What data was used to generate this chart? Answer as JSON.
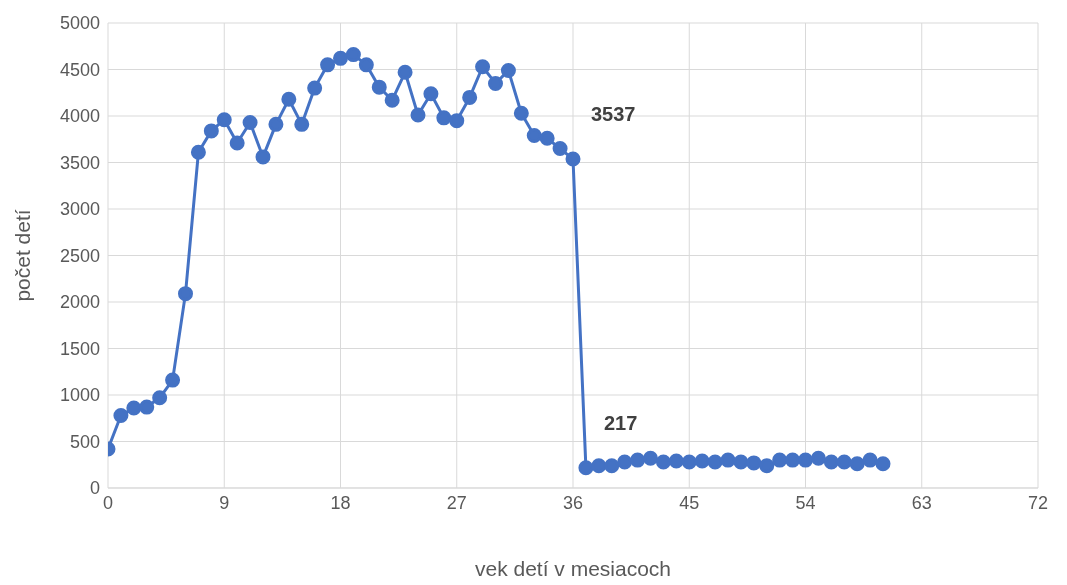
{
  "chart_data": {
    "type": "line",
    "xlabel": "vek detí v mesiacoch",
    "ylabel": "počet detí",
    "x": [
      0,
      1,
      2,
      3,
      4,
      5,
      6,
      7,
      8,
      9,
      10,
      11,
      12,
      13,
      14,
      15,
      16,
      17,
      18,
      19,
      20,
      21,
      22,
      23,
      24,
      25,
      26,
      27,
      28,
      29,
      30,
      31,
      32,
      33,
      34,
      35,
      36,
      37,
      38,
      39,
      40,
      41,
      42,
      43,
      44,
      45,
      46,
      47,
      48,
      49,
      50,
      51,
      52,
      53,
      54,
      55,
      56,
      57,
      58,
      59,
      60
    ],
    "series": [
      {
        "color": "#4472c4",
        "values": [
          420,
          780,
          860,
          870,
          970,
          1160,
          2090,
          3610,
          3840,
          3960,
          3710,
          3930,
          3560,
          3910,
          4180,
          3910,
          4300,
          4550,
          4620,
          4660,
          4550,
          4310,
          4170,
          4470,
          4010,
          4240,
          3980,
          3950,
          4200,
          4530,
          4350,
          4490,
          4030,
          3790,
          3760,
          3650,
          3537,
          217,
          240,
          240,
          280,
          300,
          320,
          280,
          290,
          280,
          290,
          280,
          300,
          280,
          270,
          240,
          300,
          300,
          300,
          320,
          280,
          280,
          260,
          300,
          260
        ],
        "value_labels": [
          null,
          null,
          null,
          null,
          null,
          null,
          null,
          null,
          null,
          null,
          null,
          null,
          null,
          null,
          null,
          null,
          null,
          null,
          null,
          null,
          null,
          null,
          null,
          null,
          null,
          null,
          null,
          null,
          null,
          null,
          null,
          null,
          null,
          null,
          null,
          null,
          "3537",
          "217",
          null,
          null,
          null,
          null,
          null,
          null,
          null,
          null,
          null,
          null,
          null,
          null,
          null,
          null,
          null,
          null,
          null,
          null,
          null,
          null,
          null,
          null,
          null
        ]
      }
    ],
    "xlim": [
      0,
      72
    ],
    "xticks": [
      0,
      9,
      18,
      27,
      36,
      45,
      54,
      63,
      72
    ],
    "ylim": [
      0,
      5000
    ],
    "yticks": [
      0,
      500,
      1000,
      1500,
      2000,
      2500,
      3000,
      3500,
      4000,
      4500,
      5000
    ],
    "grid": true,
    "marker": "circle",
    "line_style": "solid",
    "legend": false
  }
}
